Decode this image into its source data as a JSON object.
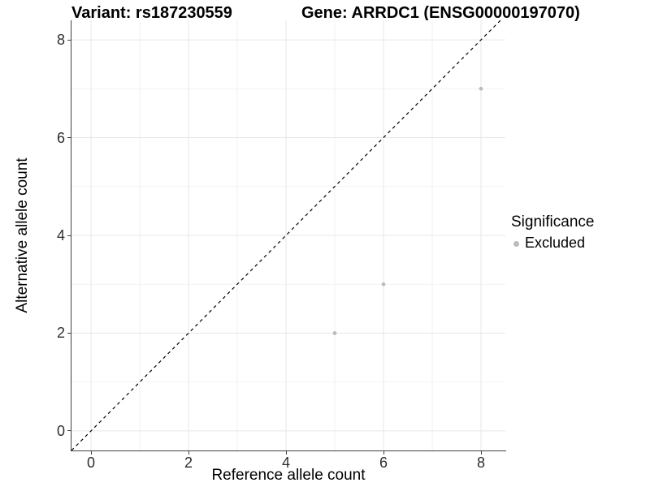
{
  "figure": {
    "title_left": "Variant: rs187230559",
    "title_right": "Gene: ARRDC1 (ENSG00000197070)"
  },
  "chart_data": {
    "type": "scatter",
    "title": "Variant: rs187230559 | Gene: ARRDC1 (ENSG00000197070)",
    "xlabel": "Reference allele count",
    "ylabel": "Alternative allele count",
    "xlim": [
      -0.4,
      8.5
    ],
    "ylim": [
      -0.4,
      8.4
    ],
    "x_ticks": [
      0,
      2,
      4,
      6,
      8
    ],
    "y_ticks": [
      0,
      2,
      4,
      6,
      8
    ],
    "x_minor_ticks": [
      1,
      3,
      5,
      7
    ],
    "y_minor_ticks": [
      1,
      3,
      5,
      7
    ],
    "grid": "major+minor",
    "reference_line": {
      "type": "identity y=x",
      "style": "dashed",
      "color": "#000000"
    },
    "series": [
      {
        "name": "Excluded",
        "color": "#bcbcbc",
        "point_radius": 2.4,
        "points": [
          [
            5,
            2
          ],
          [
            6,
            3
          ],
          [
            8,
            7
          ]
        ]
      }
    ],
    "legend": {
      "title": "Significance",
      "position": "right",
      "items": [
        {
          "label": "Excluded",
          "color": "#bcbcbc"
        }
      ]
    },
    "colors": {
      "grid_major": "#e7e7e7",
      "grid_minor": "#f2f2f2",
      "axis": "#404040",
      "tick_text": "#2e2e2e",
      "background": "#ffffff"
    }
  }
}
